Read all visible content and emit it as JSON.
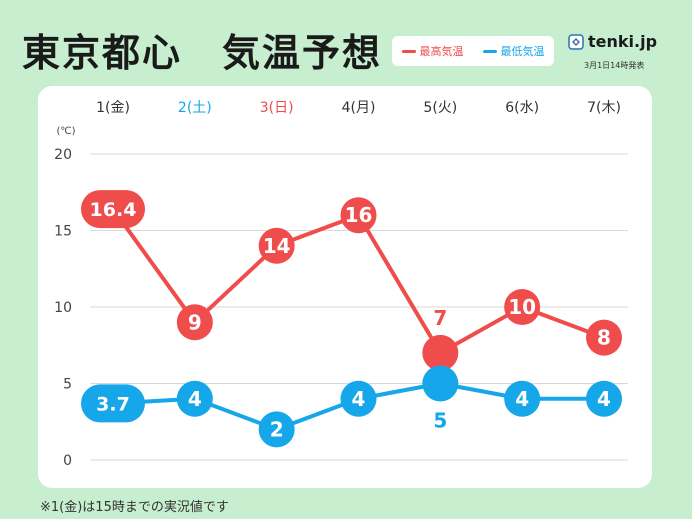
{
  "header": {
    "title": "東京都心　気温予想",
    "legend": [
      {
        "label": "最高気温",
        "color": "#ef4c4c"
      },
      {
        "label": "最低気温",
        "color": "#16a6ea"
      }
    ],
    "brand": "tenki.jp",
    "brand_icon": "tenki-logo-icon",
    "release": "3月1日14時発表"
  },
  "footnote": "※1(金)は15時までの実況値です",
  "chart_data": {
    "type": "line",
    "title": "東京都心　気温予想",
    "categories": [
      "1(金)",
      "2(土)",
      "3(日)",
      "4(月)",
      "5(火)",
      "6(水)",
      "7(木)"
    ],
    "category_colors": [
      "#333333",
      "#16a6ea",
      "#ef4c4c",
      "#333333",
      "#333333",
      "#333333",
      "#333333"
    ],
    "ylabel": "(℃)",
    "ylim": [
      0,
      20
    ],
    "yticks": [
      0,
      5,
      10,
      15,
      20
    ],
    "grid": true,
    "series": [
      {
        "name": "最高気温",
        "color": "#ef4c4c",
        "values": [
          16.4,
          9,
          14,
          16,
          7,
          10,
          8
        ],
        "labels": [
          "16.4",
          "9",
          "14",
          "16",
          "7",
          "10",
          "8"
        ]
      },
      {
        "name": "最低気温",
        "color": "#16a6ea",
        "values": [
          3.7,
          4,
          2,
          4,
          5,
          4,
          4
        ],
        "labels": [
          "3.7",
          "4",
          "2",
          "4",
          "5",
          "4",
          "4"
        ]
      }
    ]
  }
}
